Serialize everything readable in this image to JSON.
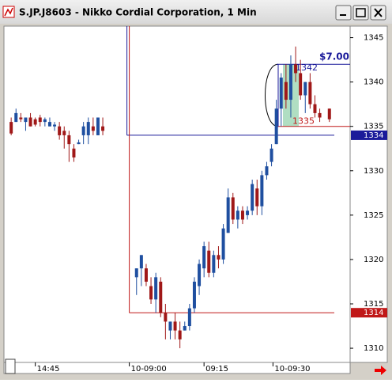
{
  "window": {
    "title": "S.JP.J8603 - Nikko Cordial Corporation, 1 Min"
  },
  "chart_data": {
    "type": "candlestick",
    "x": [
      0,
      1,
      2,
      3,
      4,
      5,
      6,
      7,
      8,
      9,
      10,
      11,
      12,
      13,
      14,
      15,
      16,
      17,
      18,
      19,
      26,
      27,
      28,
      29,
      30,
      31,
      32,
      33,
      34,
      35,
      36,
      37,
      38,
      39,
      40,
      41,
      42,
      43,
      44,
      45,
      46,
      47,
      48,
      49,
      50,
      51,
      52,
      53,
      54,
      55,
      56,
      57,
      58,
      59,
      60,
      61,
      62,
      63,
      64,
      66
    ],
    "open": [
      1335.5,
      1335.5,
      1336,
      1335.5,
      1336,
      1335.8,
      1336,
      1335.5,
      1335,
      1335,
      1335,
      1334.5,
      1334,
      1332.5,
      1333,
      1334,
      1334,
      1335,
      1334,
      1335,
      1318,
      1319,
      1319,
      1317,
      1315.5,
      1317.5,
      1314,
      1312,
      1313,
      1312,
      1312,
      1312.5,
      1314.5,
      1317,
      1319,
      1321,
      1318.5,
      1320.5,
      1320,
      1323,
      1327,
      1324.5,
      1325.5,
      1325,
      1325.5,
      1328,
      1326,
      1329.5,
      1331,
      1333,
      1337,
      1340,
      1338,
      1342,
      1341,
      1338.5,
      1340,
      1337.5,
      1336.5,
      1337
    ],
    "high": [
      1336,
      1337,
      1336.5,
      1336,
      1336.5,
      1336,
      1336.3,
      1336,
      1336,
      1335.5,
      1335.5,
      1335,
      1334.5,
      1333,
      1333.5,
      1335.5,
      1336,
      1336,
      1336,
      1336,
      1319,
      1320.5,
      1319.5,
      1318,
      1318.5,
      1318,
      1315,
      1313,
      1314,
      1313,
      1313,
      1315,
      1318,
      1320,
      1322,
      1322,
      1321,
      1321.5,
      1324,
      1328,
      1327.5,
      1326,
      1326,
      1326,
      1329,
      1329,
      1330,
      1331,
      1333,
      1338,
      1341,
      1342,
      1343,
      1344,
      1342.5,
      1340,
      1341,
      1338.5,
      1337,
      1337
    ],
    "low": [
      1334,
      1335.5,
      1335.5,
      1334.5,
      1335,
      1335,
      1335,
      1335,
      1335,
      1334.5,
      1333.5,
      1332.5,
      1331,
      1331,
      1333,
      1333,
      1333,
      1334,
      1334,
      1334,
      1316,
      1317,
      1317,
      1315,
      1314,
      1313.5,
      1311,
      1311,
      1311,
      1310,
      1312,
      1312,
      1314,
      1316,
      1318,
      1318,
      1318,
      1319,
      1319.5,
      1323,
      1324,
      1323.5,
      1324,
      1324.5,
      1325,
      1325,
      1325,
      1329,
      1330.5,
      1333,
      1335,
      1337,
      1336,
      1340,
      1338,
      1336.5,
      1337,
      1336,
      1335.5,
      1335.5
    ],
    "close": [
      1334.2,
      1336.5,
      1335.8,
      1336,
      1335,
      1335.2,
      1335.5,
      1335.8,
      1335.5,
      1335.2,
      1334,
      1334,
      1333,
      1331.5,
      1333.2,
      1335,
      1335.5,
      1334.5,
      1336,
      1334.5,
      1319,
      1320.5,
      1317.5,
      1315.5,
      1318,
      1314,
      1313,
      1313,
      1312,
      1311,
      1312.5,
      1314.5,
      1317.5,
      1319.5,
      1321.5,
      1318.5,
      1320.5,
      1320,
      1323.5,
      1327,
      1324.5,
      1325.5,
      1324.5,
      1325.5,
      1328.5,
      1326,
      1329.5,
      1330.5,
      1332.5,
      1337,
      1340.5,
      1338,
      1342,
      1341,
      1338.5,
      1340,
      1337.5,
      1336.5,
      1336,
      1335.8
    ],
    "up_color": "#1f4fa0",
    "down_color": "#a01818",
    "xlim": [
      -1.5,
      70.3
    ],
    "xticks": [
      {
        "value": 5,
        "label": "14:45"
      },
      {
        "value": 24.5,
        "label": "10-09:00"
      },
      {
        "value": 40,
        "label": "09:15"
      },
      {
        "value": 54.3,
        "label": "10-09:30"
      }
    ],
    "ylim": [
      1308.4,
      1346.3
    ],
    "yticks": [
      1310,
      1315,
      1320,
      1325,
      1330,
      1335,
      1340,
      1345
    ],
    "price_levels": [
      {
        "value": 1334,
        "label": "1334",
        "color": "#1a1a9a"
      },
      {
        "value": 1314,
        "label": "1314",
        "color": "#c01818"
      }
    ],
    "trade_box": {
      "high": {
        "value": 1342,
        "label": "1342"
      },
      "low": {
        "value": 1335,
        "label": "1335"
      },
      "difference": {
        "value": 7,
        "label": "$7.00"
      }
    }
  }
}
